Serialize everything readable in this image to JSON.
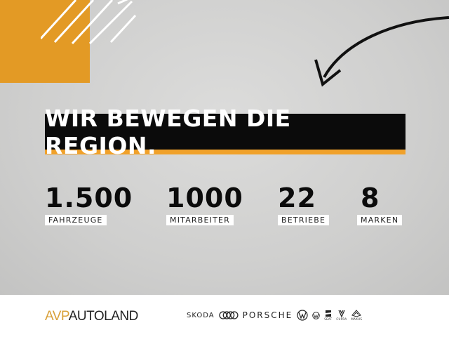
{
  "headline": "WIR BEWEGEN DIE REGION.",
  "stats": [
    {
      "value": "1.500",
      "label": "FAHRZEUGE"
    },
    {
      "value": "1000",
      "label": "MITARBEITER"
    },
    {
      "value": "22",
      "label": "BETRIEBE"
    },
    {
      "value": "8",
      "label": "MARKEN"
    }
  ],
  "footer": {
    "logo_prefix": "AVP",
    "logo_suffix": "AUTOLAND",
    "brands": [
      "SKODA",
      "Audi",
      "PORSCHE",
      "Volkswagen",
      "Volkswagen Nutzfahrzeuge",
      "SEAT",
      "CUPRA",
      "MAXUS"
    ]
  },
  "colors": {
    "accent": "#e39a25",
    "banner": "#0b0b0b",
    "stripe": "#f0a12a"
  }
}
